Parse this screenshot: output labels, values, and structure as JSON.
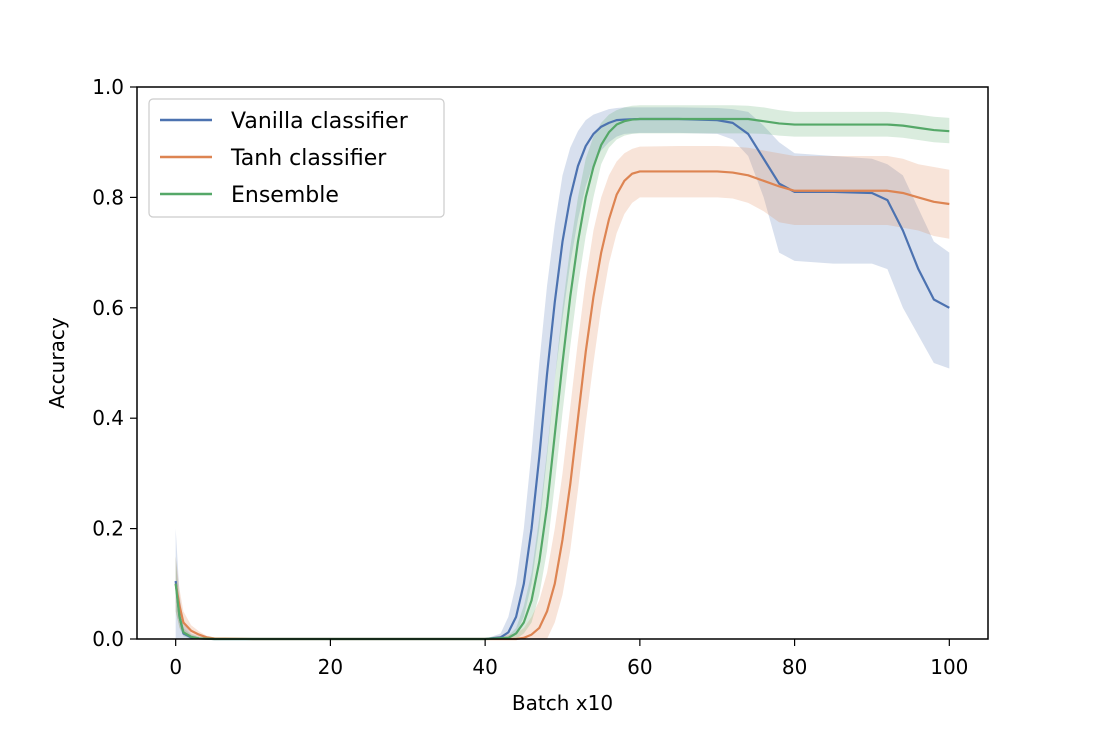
{
  "chart_data": {
    "type": "line",
    "title": "",
    "xlabel": "Batch x10",
    "ylabel": "Accuracy",
    "xlim": [
      -5,
      105
    ],
    "ylim": [
      0.0,
      1.0
    ],
    "xticks": [
      0,
      20,
      40,
      60,
      80,
      100
    ],
    "yticks": [
      0.0,
      0.2,
      0.4,
      0.6,
      0.8,
      1.0
    ],
    "xtick_labels": [
      "0",
      "20",
      "40",
      "60",
      "80",
      "100"
    ],
    "ytick_labels": [
      "0.0",
      "0.2",
      "0.4",
      "0.6",
      "0.8",
      "1.0"
    ],
    "grid": false,
    "legend_position": "top-left",
    "series": [
      {
        "name": "Vanilla classifier",
        "color": "#4c72b0",
        "x": [
          0,
          0.5,
          1,
          2,
          3,
          5,
          10,
          20,
          30,
          40,
          42,
          43,
          44,
          45,
          46,
          47,
          48,
          49,
          50,
          51,
          52,
          53,
          54,
          55,
          56,
          57,
          58,
          60,
          65,
          70,
          72,
          74,
          76,
          78,
          80,
          85,
          90,
          92,
          94,
          96,
          98,
          100
        ],
        "y": [
          0.105,
          0.04,
          0.01,
          0.003,
          0.001,
          0.0,
          0.0,
          0.0,
          0.0,
          0.0,
          0.003,
          0.012,
          0.04,
          0.1,
          0.2,
          0.33,
          0.48,
          0.61,
          0.72,
          0.8,
          0.857,
          0.893,
          0.915,
          0.928,
          0.935,
          0.94,
          0.941,
          0.942,
          0.942,
          0.94,
          0.935,
          0.915,
          0.87,
          0.825,
          0.81,
          0.81,
          0.808,
          0.795,
          0.74,
          0.67,
          0.615,
          0.6
        ],
        "lower": [
          0.0,
          0.0,
          0.0,
          0.0,
          0.0,
          0.0,
          0.0,
          0.0,
          0.0,
          0.0,
          0.0,
          0.0,
          0.01,
          0.04,
          0.1,
          0.2,
          0.33,
          0.47,
          0.58,
          0.68,
          0.76,
          0.82,
          0.86,
          0.885,
          0.9,
          0.91,
          0.915,
          0.917,
          0.917,
          0.915,
          0.905,
          0.875,
          0.8,
          0.7,
          0.685,
          0.68,
          0.68,
          0.67,
          0.6,
          0.55,
          0.5,
          0.49
        ],
        "upper": [
          0.2,
          0.08,
          0.03,
          0.01,
          0.005,
          0.0,
          0.0,
          0.0,
          0.0,
          0.0,
          0.01,
          0.04,
          0.1,
          0.2,
          0.34,
          0.5,
          0.64,
          0.75,
          0.84,
          0.89,
          0.92,
          0.94,
          0.95,
          0.955,
          0.96,
          0.962,
          0.963,
          0.963,
          0.963,
          0.962,
          0.96,
          0.955,
          0.93,
          0.9,
          0.88,
          0.875,
          0.87,
          0.86,
          0.84,
          0.78,
          0.72,
          0.7
        ]
      },
      {
        "name": "Tanh classifier",
        "color": "#dd8452",
        "x": [
          0,
          0.5,
          1,
          2,
          3,
          4,
          5,
          10,
          20,
          30,
          40,
          44,
          45,
          46,
          47,
          48,
          49,
          50,
          51,
          52,
          53,
          54,
          55,
          56,
          57,
          58,
          59,
          60,
          65,
          70,
          72,
          74,
          76,
          78,
          80,
          85,
          90,
          92,
          94,
          96,
          98,
          100
        ],
        "y": [
          0.1,
          0.06,
          0.03,
          0.015,
          0.008,
          0.003,
          0.001,
          0.0,
          0.0,
          0.0,
          0.0,
          0.0,
          0.002,
          0.008,
          0.02,
          0.05,
          0.1,
          0.18,
          0.28,
          0.4,
          0.52,
          0.62,
          0.7,
          0.76,
          0.805,
          0.83,
          0.843,
          0.847,
          0.847,
          0.847,
          0.845,
          0.84,
          0.83,
          0.82,
          0.812,
          0.812,
          0.812,
          0.812,
          0.808,
          0.8,
          0.792,
          0.788
        ],
        "lower": [
          0.05,
          0.02,
          0.01,
          0.005,
          0.002,
          0.0,
          0.0,
          0.0,
          0.0,
          0.0,
          0.0,
          0.0,
          0.0,
          0.0,
          0.0,
          0.0,
          0.03,
          0.08,
          0.16,
          0.27,
          0.39,
          0.5,
          0.6,
          0.68,
          0.735,
          0.77,
          0.79,
          0.8,
          0.8,
          0.8,
          0.798,
          0.79,
          0.775,
          0.755,
          0.75,
          0.75,
          0.75,
          0.75,
          0.745,
          0.74,
          0.73,
          0.725
        ],
        "upper": [
          0.15,
          0.09,
          0.05,
          0.025,
          0.014,
          0.006,
          0.003,
          0.0,
          0.0,
          0.0,
          0.002,
          0.01,
          0.02,
          0.04,
          0.07,
          0.12,
          0.2,
          0.3,
          0.42,
          0.54,
          0.65,
          0.74,
          0.8,
          0.84,
          0.865,
          0.88,
          0.888,
          0.892,
          0.893,
          0.893,
          0.892,
          0.89,
          0.885,
          0.88,
          0.875,
          0.875,
          0.875,
          0.875,
          0.87,
          0.86,
          0.855,
          0.85
        ]
      },
      {
        "name": "Ensemble",
        "color": "#55a868",
        "x": [
          0,
          0.5,
          1,
          2,
          3,
          5,
          10,
          20,
          30,
          40,
          43,
          44,
          45,
          46,
          47,
          48,
          49,
          50,
          51,
          52,
          53,
          54,
          55,
          56,
          57,
          58,
          59,
          60,
          65,
          70,
          72,
          74,
          76,
          78,
          80,
          85,
          90,
          92,
          94,
          96,
          98,
          100
        ],
        "y": [
          0.1,
          0.04,
          0.012,
          0.004,
          0.001,
          0.0,
          0.0,
          0.0,
          0.0,
          0.0,
          0.002,
          0.01,
          0.03,
          0.07,
          0.14,
          0.24,
          0.37,
          0.5,
          0.62,
          0.72,
          0.8,
          0.855,
          0.895,
          0.918,
          0.932,
          0.938,
          0.941,
          0.942,
          0.942,
          0.942,
          0.942,
          0.942,
          0.938,
          0.934,
          0.932,
          0.932,
          0.932,
          0.932,
          0.93,
          0.926,
          0.922,
          0.92
        ],
        "lower": [
          0.05,
          0.02,
          0.005,
          0.0,
          0.0,
          0.0,
          0.0,
          0.0,
          0.0,
          0.0,
          0.0,
          0.0,
          0.01,
          0.03,
          0.08,
          0.16,
          0.28,
          0.41,
          0.53,
          0.64,
          0.73,
          0.8,
          0.86,
          0.89,
          0.905,
          0.912,
          0.915,
          0.916,
          0.916,
          0.916,
          0.916,
          0.916,
          0.915,
          0.912,
          0.91,
          0.91,
          0.91,
          0.91,
          0.908,
          0.904,
          0.9,
          0.898
        ],
        "upper": [
          0.15,
          0.06,
          0.02,
          0.008,
          0.003,
          0.0,
          0.0,
          0.0,
          0.0,
          0.0,
          0.006,
          0.02,
          0.06,
          0.12,
          0.22,
          0.34,
          0.47,
          0.6,
          0.71,
          0.8,
          0.87,
          0.91,
          0.935,
          0.95,
          0.958,
          0.963,
          0.966,
          0.967,
          0.967,
          0.967,
          0.967,
          0.966,
          0.963,
          0.958,
          0.955,
          0.955,
          0.955,
          0.955,
          0.953,
          0.95,
          0.946,
          0.944
        ]
      }
    ]
  }
}
